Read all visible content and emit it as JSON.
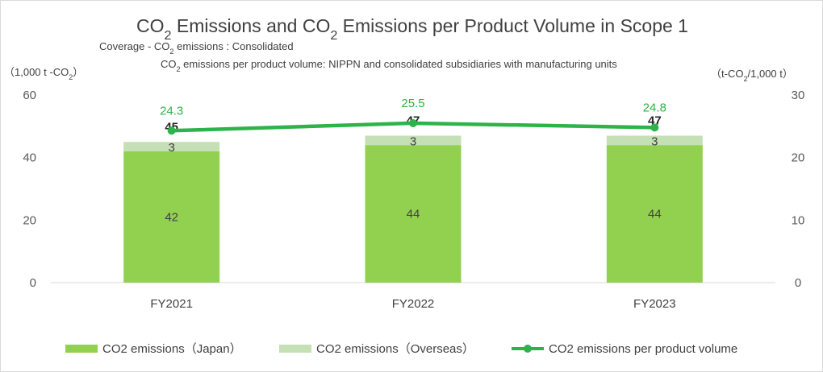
{
  "chart_data": {
    "type": "bar",
    "title_parts": [
      "CO",
      "2",
      " Emissions and  CO",
      "2",
      " Emissions per Product Volume in Scope 1"
    ],
    "subtitle_line1_parts": [
      "Coverage - CO",
      "2",
      " emissions : Consolidated"
    ],
    "subtitle_line2_parts": [
      "CO",
      "2",
      " emissions per product volume: NIPPN and consolidated subsidiaries with manufacturing units"
    ],
    "left_unit_parts": [
      "（1,000 t -CO",
      "2",
      "）"
    ],
    "right_unit_parts": [
      "（t-CO",
      "2",
      "/1,000 t）"
    ],
    "categories": [
      "FY2021",
      "FY2022",
      "FY2023"
    ],
    "series": [
      {
        "name": "CO2 emissions（Japan）",
        "type": "bar",
        "axis": "left",
        "color": "#92d050",
        "values": [
          42,
          44,
          44
        ]
      },
      {
        "name": "CO2 emissions（Overseas）",
        "type": "bar",
        "axis": "left",
        "color": "#c5e0b4",
        "values": [
          3,
          3,
          3
        ]
      },
      {
        "name": "CO2 emissions per product volume",
        "type": "line",
        "axis": "right",
        "color": "#2db34a",
        "values": [
          24.3,
          25.5,
          24.8
        ],
        "labels": [
          "24.3",
          "25.5",
          "24.8"
        ]
      }
    ],
    "totals": [
      45,
      47,
      47
    ],
    "y_left": {
      "ylim": [
        0,
        60
      ],
      "ticks": [
        "0",
        "20",
        "40",
        "60"
      ]
    },
    "y_right": {
      "ylim": [
        0,
        30
      ],
      "ticks": [
        "0",
        "10",
        "20",
        "30"
      ]
    },
    "legend_position": "bottom",
    "grid": false
  }
}
